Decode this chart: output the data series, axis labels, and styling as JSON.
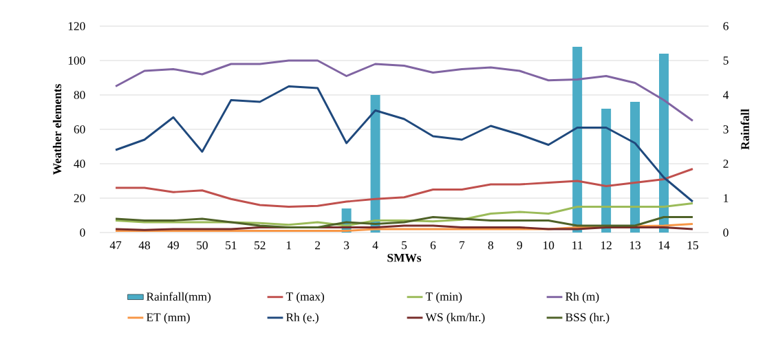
{
  "chart_data": {
    "type": "line",
    "xlabel": "SMWs",
    "ylabel": "Weather elements",
    "y2label": "Rainfall",
    "categories": [
      "47",
      "48",
      "49",
      "50",
      "51",
      "52",
      "1",
      "2",
      "3",
      "4",
      "5",
      "6",
      "7",
      "8",
      "9",
      "10",
      "11",
      "12",
      "13",
      "14",
      "15"
    ],
    "series": [
      {
        "name": "Rainfall(mm)",
        "type": "bar",
        "axis": "y2",
        "color": "#4bacc6",
        "values": [
          0,
          0,
          0,
          0,
          0,
          0,
          0,
          0,
          0.7,
          4.0,
          0,
          0,
          0,
          0,
          0,
          0,
          5.4,
          3.6,
          3.8,
          5.2,
          0
        ]
      },
      {
        "name": "T (max)",
        "color": "#c0504d",
        "values": [
          26,
          26,
          23.5,
          24.5,
          19.5,
          16,
          15,
          15.5,
          18,
          19.5,
          20.5,
          25,
          25,
          28,
          28,
          29,
          30,
          27,
          29,
          31,
          37
        ]
      },
      {
        "name": "T (min)",
        "color": "#9bbb59",
        "values": [
          7,
          6,
          6,
          6,
          6,
          5.5,
          4.5,
          6,
          4,
          7,
          7,
          6.5,
          7.5,
          11,
          12,
          11,
          15,
          15,
          15,
          15,
          17
        ]
      },
      {
        "name": "Rh (m)",
        "color": "#8064a2",
        "values": [
          85,
          94,
          95,
          92,
          98,
          98,
          100,
          100,
          91,
          98,
          97,
          93,
          95,
          96,
          94,
          88.5,
          89,
          91,
          87,
          77,
          65
        ]
      },
      {
        "name": "ET (mm)",
        "color": "#f79646",
        "values": [
          1,
          1,
          1,
          1,
          1,
          1,
          1,
          1,
          1,
          2,
          2,
          2,
          2,
          2,
          2,
          2,
          3,
          null,
          null,
          4,
          5
        ]
      },
      {
        "name": "Rh (e.)",
        "color": "#1f497d",
        "values": [
          48,
          54,
          67,
          47,
          77,
          76,
          85,
          84,
          52,
          71,
          66,
          56,
          54,
          62,
          57,
          51,
          61,
          61,
          52,
          32,
          18
        ]
      },
      {
        "name": "WS (km/hr.)",
        "color": "#772c2a",
        "values": [
          2,
          1.5,
          2,
          2,
          2,
          3,
          3,
          3,
          3,
          3,
          4,
          4,
          3,
          3,
          3,
          2,
          2,
          3,
          3,
          3,
          2
        ]
      },
      {
        "name": "BSS (hr.)",
        "color": "#4f6228",
        "values": [
          8,
          7,
          7,
          8,
          6,
          4,
          3,
          3,
          6,
          5,
          6,
          9,
          8,
          7,
          7,
          7,
          4,
          4,
          4,
          9,
          9
        ]
      }
    ],
    "ylim": [
      0,
      120
    ],
    "yticks": [
      0,
      20,
      40,
      60,
      80,
      100,
      120
    ],
    "y2lim": [
      0,
      6
    ],
    "y2ticks": [
      0,
      1,
      2,
      3,
      4,
      5,
      6
    ],
    "grid": "y",
    "legend": "bottom"
  }
}
